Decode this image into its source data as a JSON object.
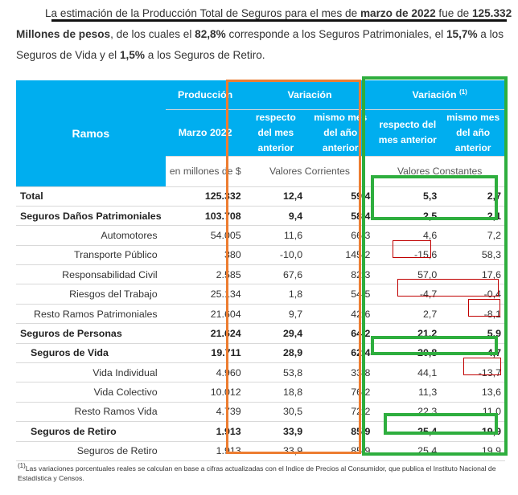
{
  "intro": {
    "line1_pre": "La estimación de la Producción Total de Seguros para el mes de ",
    "line1_bold": "marzo de 2022",
    "line1_mid": " fue de ",
    "line1_value": "125.332",
    "line2_bold1": "Millones de pesos",
    "line2_a": ", de los cuales el ",
    "line2_bold2": "82,8%",
    "line2_b": " corresponde a los Seguros Patrimoniales, el ",
    "line2_bold3": "15,7%",
    "line2_c": " a los",
    "line3_a": "Seguros de Vida y el ",
    "line3_bold": "1,5%",
    "line3_b": " a los Seguros de Retiro."
  },
  "table": {
    "header": {
      "ramos": "Ramos",
      "produccion": "Producción",
      "produccion_period": "Marzo 2022",
      "units": "en millones de $",
      "variacion": "Variación",
      "variacion_const": "Variación",
      "variacion_const_sup": "(1)",
      "col_mes": "respecto del mes anterior",
      "col_anio": "mismo mes del año anterior",
      "corrientes": "Valores Corrientes",
      "constantes": "Valores Constantes"
    },
    "rows": [
      {
        "label": "Total",
        "prod": "125.332",
        "v1": "12,4",
        "v2": "59,4",
        "v3": "5,3",
        "v4": "2,7"
      },
      {
        "label": "Seguros Daños Patrimoniales",
        "prod": "103.708",
        "v1": "9,4",
        "v2": "58,4",
        "v3": "2,5",
        "v4": "2,1"
      },
      {
        "label": "Automotores",
        "prod": "54.005",
        "v1": "11,6",
        "v2": "66,3",
        "v3": "4,6",
        "v4": "7,2"
      },
      {
        "label": "Transporte Público",
        "prod": "380",
        "v1": "-10,0",
        "v2": "145,2",
        "v3": "-15,6",
        "v4": "58,3"
      },
      {
        "label": "Responsabilidad Civil",
        "prod": "2.585",
        "v1": "67,6",
        "v2": "82,3",
        "v3": "57,0",
        "v4": "17,6"
      },
      {
        "label": "Riesgos del Trabajo",
        "prod": "25.134",
        "v1": "1,8",
        "v2": "54,5",
        "v3": "-4,7",
        "v4": "-0,4"
      },
      {
        "label": "Resto Ramos Patrimoniales",
        "prod": "21.604",
        "v1": "9,7",
        "v2": "42,6",
        "v3": "2,7",
        "v4": "-8,1"
      },
      {
        "label": "Seguros de Personas",
        "prod": "21.624",
        "v1": "29,4",
        "v2": "64,2",
        "v3": "21,2",
        "v4": "5,9"
      },
      {
        "label": "Seguros de Vida",
        "prod": "19.711",
        "v1": "28,9",
        "v2": "62,4",
        "v3": "20,8",
        "v4": "4,7"
      },
      {
        "label": "Vida Individual",
        "prod": "4.960",
        "v1": "53,8",
        "v2": "33,8",
        "v3": "44,1",
        "v4": "-13,7"
      },
      {
        "label": "Vida Colectivo",
        "prod": "10.012",
        "v1": "18,8",
        "v2": "76,2",
        "v3": "11,3",
        "v4": "13,6"
      },
      {
        "label": "Resto Ramos Vida",
        "prod": "4.739",
        "v1": "30,5",
        "v2": "72,2",
        "v3": "22,3",
        "v4": "11,0"
      },
      {
        "label": "Seguros de Retiro",
        "prod": "1.913",
        "v1": "33,9",
        "v2": "85,9",
        "v3": "25,4",
        "v4": "19,9"
      },
      {
        "label": "Seguros de Retiro",
        "prod": "1.913",
        "v1": "33,9",
        "v2": "85,9",
        "v3": "25,4",
        "v4": "19,9"
      }
    ]
  },
  "footnote": {
    "mark": "(1)",
    "text": "Las variaciones porcentuales reales se calculan en base a cifras actualizadas con  el Indice de Precios al Consumidor, que publica el Instituto Nacional de Estadística y Censos."
  },
  "colors": {
    "header_blue": "#00aeef",
    "orange_frame": "#ed7d31",
    "green_frame": "#2eae3e",
    "red_frame": "#c00000"
  }
}
